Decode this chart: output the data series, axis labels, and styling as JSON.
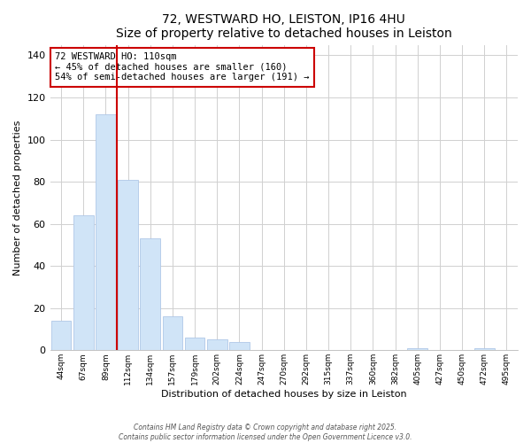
{
  "title": "72, WESTWARD HO, LEISTON, IP16 4HU",
  "subtitle": "Size of property relative to detached houses in Leiston",
  "xlabel": "Distribution of detached houses by size in Leiston",
  "ylabel": "Number of detached properties",
  "bar_color": "#d0e4f7",
  "bar_edge_color": "#b0c8e8",
  "grid_color": "#d0d0d0",
  "bg_color": "#ffffff",
  "categories": [
    "44sqm",
    "67sqm",
    "89sqm",
    "112sqm",
    "134sqm",
    "157sqm",
    "179sqm",
    "202sqm",
    "224sqm",
    "247sqm",
    "270sqm",
    "292sqm",
    "315sqm",
    "337sqm",
    "360sqm",
    "382sqm",
    "405sqm",
    "427sqm",
    "450sqm",
    "472sqm",
    "495sqm"
  ],
  "values": [
    14,
    64,
    112,
    81,
    53,
    16,
    6,
    5,
    4,
    0,
    0,
    0,
    0,
    0,
    0,
    0,
    1,
    0,
    0,
    1,
    0
  ],
  "vline_color": "#cc0000",
  "annotation_line1": "72 WESTWARD HO: 110sqm",
  "annotation_line2": "← 45% of detached houses are smaller (160)",
  "annotation_line3": "54% of semi-detached houses are larger (191) →",
  "annotation_box_color": "#ffffff",
  "annotation_box_edge": "#cc0000",
  "ylim": [
    0,
    145
  ],
  "yticks": [
    0,
    20,
    40,
    60,
    80,
    100,
    120,
    140
  ],
  "footer_line1": "Contains HM Land Registry data © Crown copyright and database right 2025.",
  "footer_line2": "Contains public sector information licensed under the Open Government Licence v3.0."
}
